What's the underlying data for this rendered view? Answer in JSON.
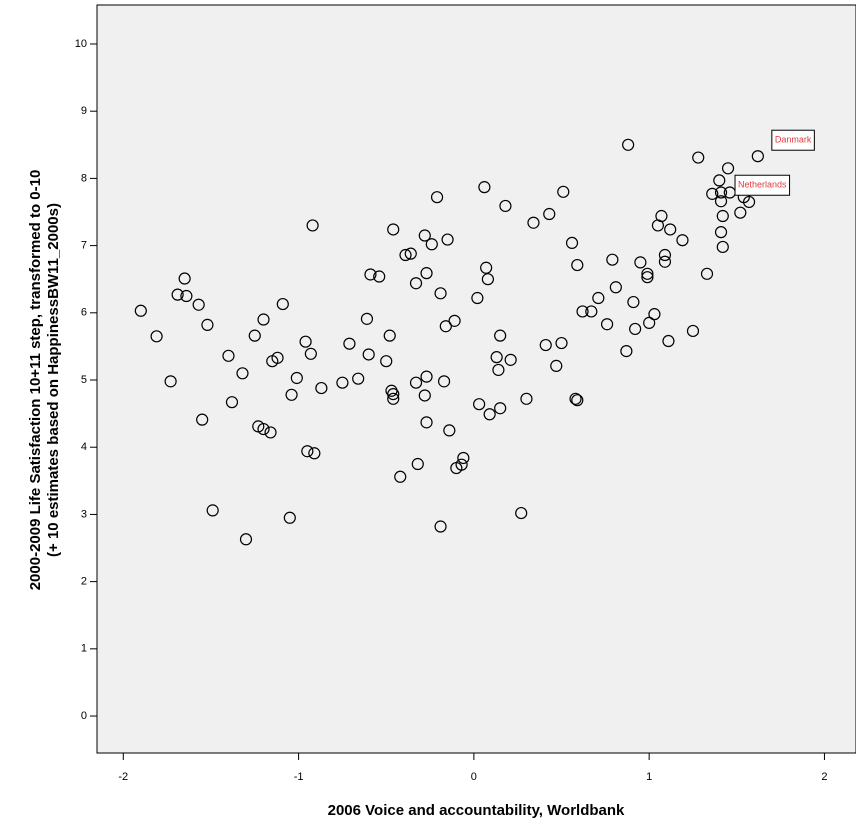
{
  "chart_data": {
    "type": "scatter",
    "xlabel": "2006 Voice and accountability, Worldbank",
    "ylabel": [
      "2000-2009 Life Satisfaction 10+11 step, transformed to 0-10",
      "(+ 10 estimates based on HappinessBW11_2000s)"
    ],
    "xlim": [
      -2.15,
      2.18
    ],
    "ylim": [
      -0.55,
      10.58
    ],
    "xticks": [
      -2,
      -1,
      0,
      1,
      2
    ],
    "yticks": [
      0,
      1,
      2,
      3,
      4,
      5,
      6,
      7,
      8,
      9,
      10
    ],
    "background": "#f0f0f0",
    "marker_color": "#000000",
    "x": [
      -1.9,
      -1.81,
      -1.73,
      -1.69,
      -1.65,
      -1.64,
      -1.57,
      -1.55,
      -1.52,
      -1.49,
      -1.4,
      -1.38,
      -1.32,
      -1.3,
      -1.25,
      -1.23,
      -1.2,
      -1.2,
      -1.16,
      -1.15,
      -1.12,
      -1.09,
      -1.05,
      -1.04,
      -1.01,
      -0.96,
      -0.95,
      -0.93,
      -0.92,
      -0.91,
      -0.87,
      -0.75,
      -0.71,
      -0.66,
      -0.61,
      -0.6,
      -0.59,
      -0.54,
      -0.5,
      -0.48,
      -0.47,
      -0.46,
      -0.46,
      -0.46,
      -0.42,
      -0.39,
      -0.36,
      -0.33,
      -0.33,
      -0.32,
      -0.28,
      -0.27,
      -0.28,
      -0.27,
      -0.27,
      -0.24,
      -0.21,
      -0.19,
      -0.19,
      -0.17,
      -0.16,
      -0.15,
      -0.14,
      -0.11,
      -0.1,
      -0.07,
      -0.06,
      0.02,
      0.03,
      0.06,
      0.07,
      0.08,
      0.09,
      0.13,
      0.14,
      0.15,
      0.15,
      0.18,
      0.21,
      0.27,
      0.3,
      0.34,
      0.41,
      0.43,
      0.47,
      0.5,
      0.51,
      0.56,
      0.58,
      0.59,
      0.59,
      0.62,
      0.67,
      0.71,
      0.76,
      0.79,
      0.81,
      0.87,
      0.88,
      0.91,
      0.92,
      0.95,
      0.99,
      0.99,
      1.0,
      1.03,
      1.05,
      1.07,
      1.09,
      1.09,
      1.11,
      1.12,
      1.19,
      1.25,
      1.28,
      1.33,
      1.36,
      1.4,
      1.41,
      1.41,
      1.42,
      1.41,
      1.42,
      1.45,
      1.46,
      1.52,
      1.54,
      1.57,
      1.62
    ],
    "values": [
      6.03,
      5.65,
      4.98,
      6.27,
      6.51,
      6.25,
      6.12,
      4.41,
      5.82,
      3.06,
      5.36,
      4.67,
      5.1,
      2.63,
      5.66,
      4.31,
      5.9,
      4.27,
      4.22,
      5.28,
      5.33,
      6.13,
      2.95,
      4.78,
      5.03,
      5.57,
      3.94,
      5.39,
      7.3,
      3.91,
      4.88,
      4.96,
      5.54,
      5.02,
      5.91,
      5.38,
      6.57,
      6.54,
      5.28,
      5.66,
      4.84,
      7.24,
      4.79,
      4.72,
      3.56,
      6.86,
      6.88,
      6.44,
      4.96,
      3.75,
      7.15,
      6.59,
      4.77,
      5.05,
      4.37,
      7.02,
      7.72,
      6.29,
      2.82,
      4.98,
      5.8,
      7.09,
      4.25,
      5.88,
      3.69,
      3.74,
      3.84,
      6.22,
      4.64,
      7.87,
      6.67,
      6.5,
      4.49,
      5.34,
      5.15,
      5.66,
      4.58,
      7.59,
      5.3,
      3.02,
      4.72,
      7.34,
      5.52,
      7.47,
      5.21,
      5.55,
      7.8,
      7.04,
      4.72,
      4.7,
      6.71,
      6.02,
      6.02,
      6.22,
      5.83,
      6.79,
      6.38,
      5.43,
      8.5,
      6.16,
      5.76,
      6.75,
      6.58,
      6.53,
      5.85,
      5.98,
      7.3,
      7.44,
      6.86,
      6.76,
      5.58,
      7.24,
      7.08,
      5.73,
      8.31,
      6.58,
      7.77,
      7.97,
      7.79,
      7.66,
      7.44,
      7.2,
      6.98,
      8.15,
      7.79,
      7.49,
      7.72,
      7.65,
      8.33
    ],
    "annotations": [
      {
        "text": "Danmark",
        "x": 1.62,
        "y": 8.33
      },
      {
        "text": "Netherlands",
        "x": 1.41,
        "y": 7.66
      }
    ]
  }
}
